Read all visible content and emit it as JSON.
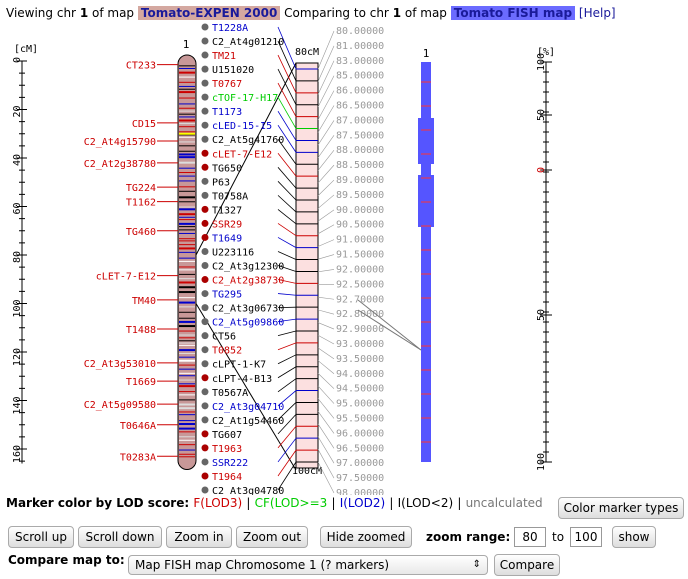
{
  "header": {
    "viewing_prefix": "Viewing chr",
    "chr1": "1",
    "of_map": "of map",
    "map1_name": "Tomato-EXPEN 2000",
    "comparing_prefix": "Comparing to chr",
    "chr2": "1",
    "of_map2": "of map",
    "map2_name": "Tomato FISH map",
    "help": "[Help]"
  },
  "left_chr": {
    "number": "1",
    "unit": "[cM]",
    "ticks": [
      "0",
      "20",
      "40",
      "60",
      "80",
      "100",
      "120",
      "140",
      "160"
    ],
    "left_labels": [
      {
        "text": "CT233",
        "cm": 1.5,
        "color": "#c00"
      },
      {
        "text": "CD15",
        "cm": 25.5,
        "color": "#c00"
      },
      {
        "text": "C2_At4g15790",
        "cm": 33,
        "color": "#c00"
      },
      {
        "text": "C2_At2g38780",
        "cm": 42,
        "color": "#c00"
      },
      {
        "text": "TG224",
        "cm": 52,
        "color": "#c00"
      },
      {
        "text": "T1162",
        "cm": 58,
        "color": "#c00"
      },
      {
        "text": "TG460",
        "cm": 70,
        "color": "#c00"
      },
      {
        "text": "cLET-7-E12",
        "cm": 88.5,
        "color": "#c00"
      },
      {
        "text": "TM40",
        "cm": 98.5,
        "color": "#c00"
      },
      {
        "text": "T1488",
        "cm": 110.5,
        "color": "#c00"
      },
      {
        "text": "C2_At3g53010",
        "cm": 124.5,
        "color": "#c00"
      },
      {
        "text": "T1669",
        "cm": 132,
        "color": "#c00"
      },
      {
        "text": "C2_At5g09580",
        "cm": 141.5,
        "color": "#c00"
      },
      {
        "text": "T0646A",
        "cm": 150,
        "color": "#c00"
      },
      {
        "text": "T0283A",
        "cm": 163,
        "color": "#c00"
      }
    ]
  },
  "zoom_markers": [
    {
      "text": "T1228A",
      "color": "#00c",
      "dot": "#666"
    },
    {
      "text": "C2_At4g01210",
      "color": "#000",
      "dot": "#666"
    },
    {
      "text": "TM21",
      "color": "#c00",
      "dot": "#666"
    },
    {
      "text": "U151020",
      "color": "#000",
      "dot": "#666"
    },
    {
      "text": "T0767",
      "color": "#c00",
      "dot": "#666"
    },
    {
      "text": "cTOF-17-H17",
      "color": "#0c0",
      "dot": "#666"
    },
    {
      "text": "T1173",
      "color": "#00c",
      "dot": "#666"
    },
    {
      "text": "cLED-15-I5",
      "color": "#00c",
      "dot": "#666"
    },
    {
      "text": "C2_At5g41760",
      "color": "#000",
      "dot": "#666"
    },
    {
      "text": "cLET-7-E12",
      "color": "#c00",
      "dot": "#a00"
    },
    {
      "text": "TG650",
      "color": "#000",
      "dot": "#a00"
    },
    {
      "text": "P63",
      "color": "#000",
      "dot": "#666"
    },
    {
      "text": "T0758A",
      "color": "#000",
      "dot": "#666"
    },
    {
      "text": "T1327",
      "color": "#000",
      "dot": "#a00"
    },
    {
      "text": "SSR29",
      "color": "#c00",
      "dot": "#a00"
    },
    {
      "text": "T1649",
      "color": "#00c",
      "dot": "#a00"
    },
    {
      "text": "U223116",
      "color": "#000",
      "dot": "#666"
    },
    {
      "text": "C2_At3g12300",
      "color": "#000",
      "dot": "#666"
    },
    {
      "text": "C2_At2g38730",
      "color": "#c00",
      "dot": "#a00"
    },
    {
      "text": "TG295",
      "color": "#00c",
      "dot": "#666"
    },
    {
      "text": "C2_At3g06730",
      "color": "#000",
      "dot": "#666"
    },
    {
      "text": "C2_At5g09860",
      "color": "#00c",
      "dot": "#666"
    },
    {
      "text": "CT56",
      "color": "#000",
      "dot": "#666"
    },
    {
      "text": "T0852",
      "color": "#c00",
      "dot": "#666"
    },
    {
      "text": "cLPT-1-K7",
      "color": "#000",
      "dot": "#666"
    },
    {
      "text": "cLPT-4-B13",
      "color": "#000",
      "dot": "#a00"
    },
    {
      "text": "T0567A",
      "color": "#000",
      "dot": "#666"
    },
    {
      "text": "C2_At3g04710",
      "color": "#00c",
      "dot": "#666"
    },
    {
      "text": "C2_At1g54460",
      "color": "#000",
      "dot": "#666"
    },
    {
      "text": "TG607",
      "color": "#000",
      "dot": "#a00"
    },
    {
      "text": "T1963",
      "color": "#c00",
      "dot": "#a00"
    },
    {
      "text": "SSR222",
      "color": "#00c",
      "dot": "#666"
    },
    {
      "text": "T1964",
      "color": "#c00",
      "dot": "#a00"
    },
    {
      "text": "C2_At3g04780",
      "color": "#000",
      "dot": "#666"
    }
  ],
  "zoom": {
    "top_label": "80cM",
    "bottom_label": "100cM",
    "scale_values": [
      "80.00000",
      "81.00000",
      "83.00000",
      "85.00000",
      "86.00000",
      "86.50000",
      "87.00000",
      "87.50000",
      "88.00000",
      "88.50000",
      "89.00000",
      "89.50000",
      "90.00000",
      "90.50000",
      "91.00000",
      "91.50000",
      "92.00000",
      "92.50000",
      "92.70000",
      "92.80000",
      "92.90000",
      "93.00000",
      "93.50000",
      "94.00000",
      "94.50000",
      "95.00000",
      "95.50000",
      "96.00000",
      "96.50000",
      "97.00000",
      "97.50000",
      "98.00000"
    ]
  },
  "right_chr": {
    "number": "1",
    "unit": "[%]",
    "ticks": [
      "100",
      "50",
      "0",
      "50",
      "100"
    ]
  },
  "legend": {
    "title": "Marker color by LOD score:",
    "f": "F(LOD3)",
    "cf": "CF(LOD>=3",
    "i": "I(LOD2)",
    "il": "I(LOD<2)",
    "uncalc": "uncalculated",
    "sep": "|"
  },
  "controls": {
    "color_types": "Color marker types",
    "scroll_up": "Scroll up",
    "scroll_down": "Scroll down",
    "zoom_in": "Zoom in",
    "zoom_out": "Zoom out",
    "hide_zoomed": "Hide zoomed",
    "zoom_range_label": "zoom range:",
    "zoom_from": "80",
    "to_label": "to",
    "zoom_to": "100",
    "show": "show",
    "compare_label": "Compare map to:",
    "compare_select": "Map FISH map Chromosome 1 (? markers)",
    "compare_btn": "Compare"
  },
  "colors": {
    "chr_base": "#c89898",
    "fish_blue": "#5555ff",
    "red": "#c00",
    "blue": "#00c"
  }
}
